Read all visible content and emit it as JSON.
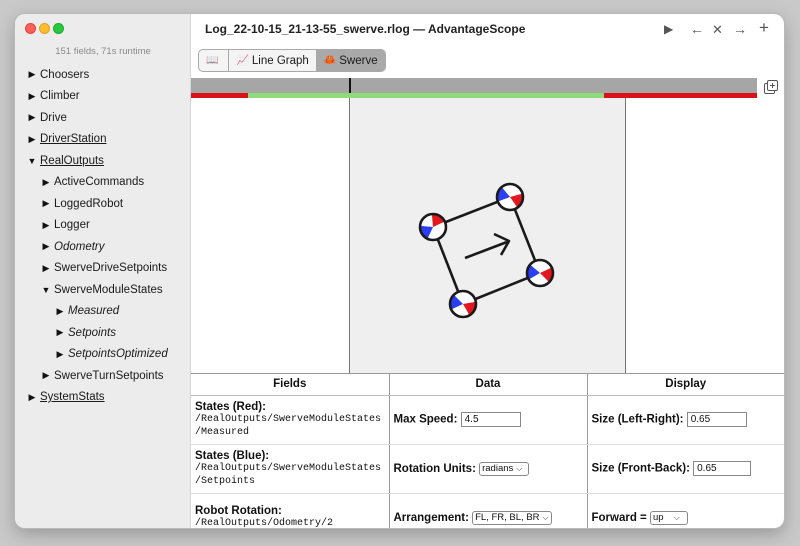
{
  "sidebar": {
    "field_count": "151 fields, 71s runtime",
    "items": [
      {
        "label": "Choosers",
        "arrow": "▶",
        "indent": 0,
        "italic": false,
        "underline": false
      },
      {
        "label": "Climber",
        "arrow": "▶",
        "indent": 0,
        "italic": false,
        "underline": false
      },
      {
        "label": "Drive",
        "arrow": "▶",
        "indent": 0,
        "italic": false,
        "underline": false
      },
      {
        "label": "DriverStation",
        "arrow": "▶",
        "indent": 0,
        "italic": false,
        "underline": true
      },
      {
        "label": "RealOutputs",
        "arrow": "▼",
        "indent": 0,
        "italic": false,
        "underline": true
      },
      {
        "label": "ActiveCommands",
        "arrow": "▶",
        "indent": 1,
        "italic": false,
        "underline": false
      },
      {
        "label": "LoggedRobot",
        "arrow": "▶",
        "indent": 1,
        "italic": false,
        "underline": false
      },
      {
        "label": "Logger",
        "arrow": "▶",
        "indent": 1,
        "italic": false,
        "underline": false
      },
      {
        "label": "Odometry",
        "arrow": "▶",
        "indent": 1,
        "italic": true,
        "underline": false
      },
      {
        "label": "SwerveDriveSetpoints",
        "arrow": "▶",
        "indent": 1,
        "italic": false,
        "underline": false
      },
      {
        "label": "SwerveModuleStates",
        "arrow": "▼",
        "indent": 1,
        "italic": false,
        "underline": false
      },
      {
        "label": "Measured",
        "arrow": "▶",
        "indent": 2,
        "italic": true,
        "underline": false
      },
      {
        "label": "Setpoints",
        "arrow": "▶",
        "indent": 2,
        "italic": true,
        "underline": false
      },
      {
        "label": "SetpointsOptimized",
        "arrow": "▶",
        "indent": 2,
        "italic": true,
        "underline": false
      },
      {
        "label": "SwerveTurnSetpoints",
        "arrow": "▶",
        "indent": 1,
        "italic": false,
        "underline": false
      },
      {
        "label": "SystemStats",
        "arrow": "▶",
        "indent": 0,
        "italic": false,
        "underline": true
      }
    ]
  },
  "titlebar": {
    "title": "Log_22-10-15_21-13-55_swerve.rlog — AdvantageScope",
    "play_icon": "▶",
    "back_icon": "←",
    "close_icon": "✕",
    "forward_icon": "→",
    "add_icon": "+"
  },
  "tabs": [
    {
      "icon": "📖",
      "label": "",
      "active": false
    },
    {
      "icon": "📈",
      "label": "Line Graph",
      "active": false
    },
    {
      "icon": "🦀",
      "label": "Swerve",
      "active": true
    }
  ],
  "colors": {
    "enabled_green": "#8fdb7a",
    "disabled_red": "#d9131a",
    "module_red": "#e4171e",
    "module_blue": "#2a3ff2"
  },
  "table": {
    "headers": [
      "Fields",
      "Data",
      "Display"
    ],
    "rows": [
      {
        "field_label": "States (Red):",
        "field_path": "/RealOutputs/SwerveModuleStates /Measured",
        "data_label": "Max Speed:",
        "data_value": "4.5",
        "data_type": "input",
        "display_label": "Size (Left-Right):",
        "display_value": "0.65",
        "display_type": "input"
      },
      {
        "field_label": "States (Blue):",
        "field_path": "/RealOutputs/SwerveModuleStates /Setpoints",
        "data_label": "Rotation Units:",
        "data_value": "radians",
        "data_type": "select",
        "display_label": "Size (Front-Back):",
        "display_value": "0.65",
        "display_type": "input"
      },
      {
        "field_label": "Robot Rotation:",
        "field_path": "/RealOutputs/Odometry/2",
        "data_label": "Arrangement:",
        "data_value": "FL, FR, BL, BR",
        "data_type": "select",
        "display_label": "Forward =",
        "display_value": "up",
        "display_type": "select"
      }
    ]
  }
}
